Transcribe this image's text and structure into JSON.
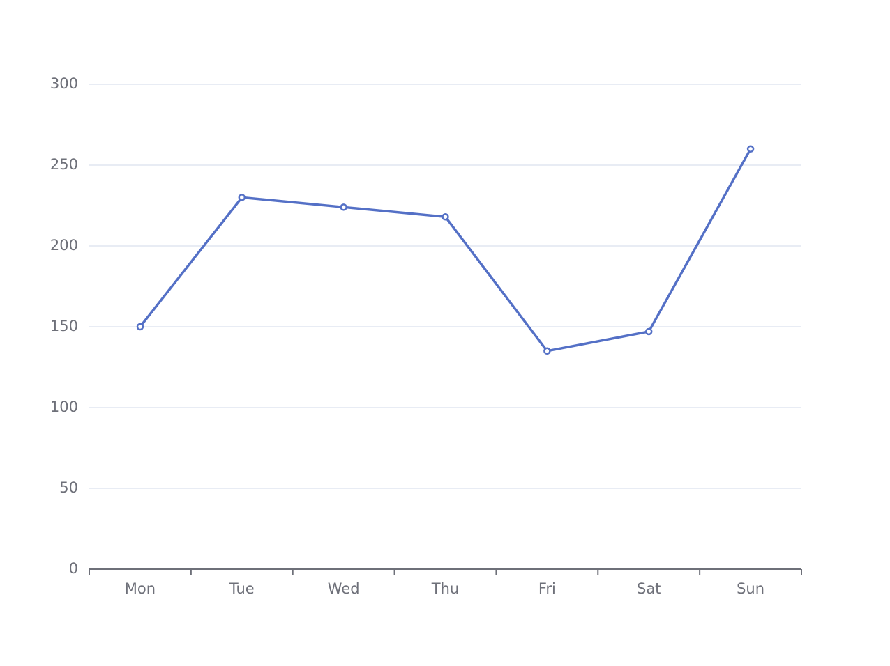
{
  "chart_data": {
    "type": "line",
    "categories": [
      "Mon",
      "Tue",
      "Wed",
      "Thu",
      "Fri",
      "Sat",
      "Sun"
    ],
    "values": [
      150,
      230,
      224,
      218,
      135,
      147,
      260
    ],
    "color": "#5470c6",
    "ylim": [
      0,
      300
    ],
    "yticks": [
      0,
      50,
      100,
      150,
      200,
      250,
      300
    ],
    "grid": true
  }
}
